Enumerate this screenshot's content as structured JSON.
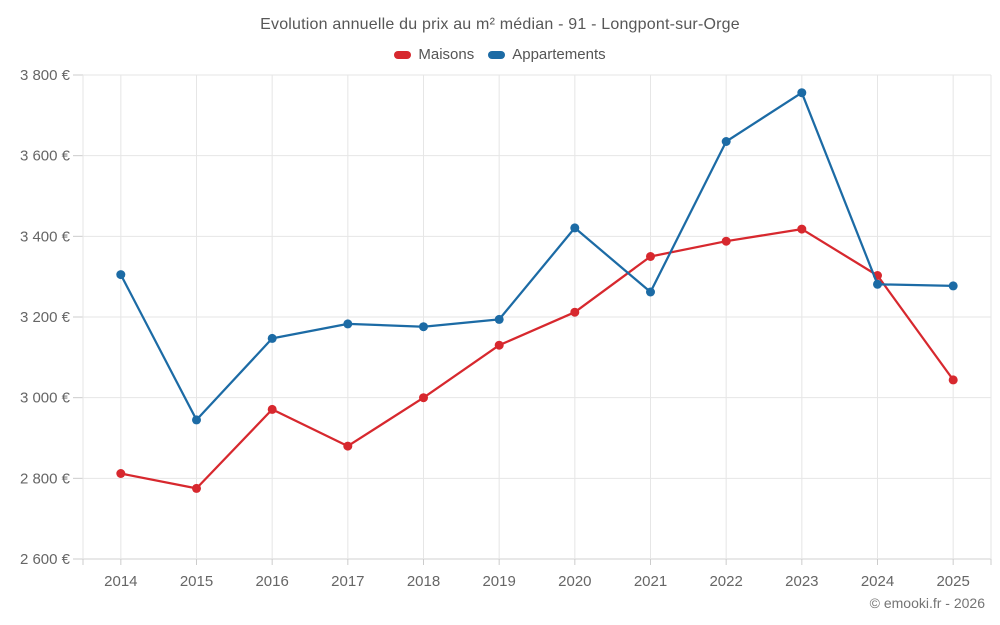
{
  "title": "Evolution annuelle du prix au m² médian - 91 - Longpont-sur-Orge",
  "credit": "© emooki.fr - 2026",
  "legend": [
    {
      "id": "maisons",
      "label": "Maisons",
      "color": "#d7282e"
    },
    {
      "id": "appartements",
      "label": "Appartements",
      "color": "#1c6ba5"
    }
  ],
  "colors": {
    "maisons": "#d7282e",
    "appartements": "#1c6ba5",
    "grid": "#e6e6e6",
    "axis_line": "#d0d0d0",
    "tick": "#cccccc",
    "axis_text": "#666666"
  },
  "chart_data": {
    "type": "line",
    "title": "Evolution annuelle du prix au m² médian - 91 - Longpont-sur-Orge",
    "categories": [
      "2014",
      "2015",
      "2016",
      "2017",
      "2018",
      "2019",
      "2020",
      "2021",
      "2022",
      "2023",
      "2024",
      "2025"
    ],
    "series": [
      {
        "name": "Maisons",
        "color": "#d7282e",
        "values": [
          2812,
          2775,
          2971,
          2880,
          3000,
          3130,
          3212,
          3350,
          3388,
          3418,
          3303,
          3044
        ]
      },
      {
        "name": "Appartements",
        "color": "#1c6ba5",
        "values": [
          3305,
          2945,
          3147,
          3183,
          3176,
          3194,
          3421,
          3262,
          3635,
          3756,
          3281,
          3277
        ]
      }
    ],
    "xlabel": "",
    "ylabel": "",
    "ylim": [
      2600,
      3800
    ],
    "ytick_step": 200,
    "ytick_format": "{value} €",
    "grid": true,
    "legend_position": "top"
  }
}
